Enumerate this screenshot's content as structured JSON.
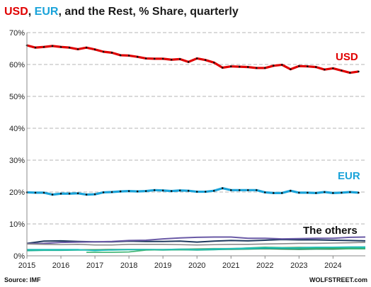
{
  "chart_data": {
    "type": "line",
    "title": {
      "part1": "USD",
      "sep1": ", ",
      "part2": "EUR",
      "part3": ", and the Rest, % Share, quarterly"
    },
    "source": "Source: IMF",
    "brand": "WOLFSTREET.com",
    "x_ticks": [
      "2015",
      "2016",
      "2017",
      "2018",
      "2019",
      "2020",
      "2021",
      "2022",
      "2023",
      "2024"
    ],
    "y_ticks": [
      "0%",
      "10%",
      "20%",
      "30%",
      "40%",
      "50%",
      "60%",
      "70%"
    ],
    "ylim": [
      0,
      70
    ],
    "xlim": [
      2015.0,
      2024.95
    ],
    "grid": true,
    "colors": {
      "usd": "#e00000",
      "eur": "#1aa3d9",
      "marker": "#111111",
      "others": [
        "#1f3a5f",
        "#6a5aa6",
        "#8a8a8a",
        "#b5a642",
        "#2e8b57",
        "#1fb59a",
        "#3cb371",
        "#20c0c0"
      ]
    },
    "series": [
      {
        "key": "usd",
        "label": "USD",
        "x": [
          2015.0,
          2015.25,
          2015.5,
          2015.75,
          2016.0,
          2016.25,
          2016.5,
          2016.75,
          2017.0,
          2017.25,
          2017.5,
          2017.75,
          2018.0,
          2018.25,
          2018.5,
          2018.75,
          2019.0,
          2019.25,
          2019.5,
          2019.75,
          2020.0,
          2020.25,
          2020.5,
          2020.75,
          2021.0,
          2021.25,
          2021.5,
          2021.75,
          2022.0,
          2022.25,
          2022.5,
          2022.75,
          2023.0,
          2023.25,
          2023.5,
          2023.75,
          2024.0,
          2024.25,
          2024.5,
          2024.75
        ],
        "values": [
          66.0,
          65.3,
          65.5,
          65.8,
          65.5,
          65.3,
          64.8,
          65.3,
          64.7,
          64.0,
          63.7,
          62.9,
          62.8,
          62.4,
          61.9,
          61.8,
          61.8,
          61.5,
          61.7,
          60.8,
          61.9,
          61.4,
          60.6,
          59.0,
          59.4,
          59.3,
          59.2,
          58.9,
          58.9,
          59.6,
          59.9,
          58.5,
          59.5,
          59.4,
          59.2,
          58.4,
          58.8,
          58.1,
          57.4,
          57.8
        ]
      },
      {
        "key": "eur",
        "label": "EUR",
        "x": [
          2015.0,
          2015.25,
          2015.5,
          2015.75,
          2016.0,
          2016.25,
          2016.5,
          2016.75,
          2017.0,
          2017.25,
          2017.5,
          2017.75,
          2018.0,
          2018.25,
          2018.5,
          2018.75,
          2019.0,
          2019.25,
          2019.5,
          2019.75,
          2020.0,
          2020.25,
          2020.5,
          2020.75,
          2021.0,
          2021.25,
          2021.5,
          2021.75,
          2022.0,
          2022.25,
          2022.5,
          2022.75,
          2023.0,
          2023.25,
          2023.5,
          2023.75,
          2024.0,
          2024.25,
          2024.5,
          2024.75
        ],
        "values": [
          19.9,
          19.8,
          19.8,
          19.2,
          19.5,
          19.5,
          19.6,
          19.2,
          19.3,
          19.9,
          20.0,
          20.2,
          20.3,
          20.2,
          20.3,
          20.6,
          20.5,
          20.3,
          20.5,
          20.4,
          20.1,
          20.1,
          20.4,
          21.2,
          20.6,
          20.6,
          20.6,
          20.6,
          19.9,
          19.7,
          19.7,
          20.4,
          19.8,
          19.8,
          19.7,
          20.0,
          19.7,
          19.8,
          20.0,
          19.8
        ]
      }
    ],
    "others_label": "The others",
    "others": [
      {
        "x": [
          2015.0,
          2015.5,
          2016.0,
          2016.5,
          2017.0,
          2017.5,
          2018.0,
          2018.5,
          2019.0,
          2019.5,
          2020.0,
          2020.5,
          2021.0,
          2021.5,
          2022.0,
          2022.5,
          2023.0,
          2023.5,
          2024.0,
          2024.5,
          2024.95
        ],
        "values": [
          3.9,
          4.6,
          4.7,
          4.5,
          4.4,
          4.4,
          4.6,
          4.5,
          4.5,
          4.6,
          4.3,
          4.6,
          4.8,
          4.7,
          4.9,
          5.1,
          5.0,
          5.0,
          4.9,
          4.8,
          4.7
        ]
      },
      {
        "x": [
          2015.0,
          2015.5,
          2016.0,
          2016.5,
          2017.0,
          2017.5,
          2018.0,
          2018.5,
          2019.0,
          2019.5,
          2020.0,
          2020.5,
          2021.0,
          2021.5,
          2022.0,
          2022.5,
          2023.0,
          2023.5,
          2024.0,
          2024.5,
          2024.95
        ],
        "values": [
          3.8,
          3.9,
          4.2,
          4.3,
          4.4,
          4.5,
          4.8,
          4.9,
          5.3,
          5.6,
          5.8,
          5.9,
          5.9,
          5.5,
          5.5,
          5.3,
          5.4,
          5.5,
          5.5,
          5.8,
          5.9
        ]
      },
      {
        "x": [
          2015.0,
          2015.5,
          2016.0,
          2016.5,
          2017.0,
          2017.5,
          2018.0,
          2018.5,
          2019.0,
          2019.5,
          2020.0,
          2020.5,
          2021.0,
          2021.5,
          2022.0,
          2022.5,
          2023.0,
          2023.5,
          2024.0,
          2024.5,
          2024.95
        ],
        "values": [
          3.7,
          3.6,
          3.5,
          3.6,
          3.4,
          3.4,
          3.6,
          3.6,
          3.6,
          3.5,
          3.4,
          3.5,
          3.6,
          3.6,
          3.7,
          3.8,
          3.9,
          3.9,
          4.0,
          4.1,
          4.2
        ]
      },
      {
        "x": [
          2015.0,
          2015.5,
          2016.0,
          2016.5,
          2017.0,
          2017.5,
          2018.0,
          2018.5,
          2019.0,
          2019.5,
          2020.0,
          2020.5,
          2021.0,
          2021.5,
          2022.0,
          2022.5,
          2023.0,
          2023.5,
          2024.0,
          2024.5,
          2024.95
        ],
        "values": [
          1.8,
          1.8,
          1.9,
          1.9,
          1.9,
          2.0,
          2.0,
          2.0,
          2.0,
          2.1,
          2.2,
          2.3,
          2.3,
          2.4,
          2.6,
          2.6,
          2.7,
          2.6,
          2.6,
          2.7,
          2.8
        ]
      },
      {
        "x": [
          2015.0,
          2015.5,
          2016.0,
          2016.5,
          2017.0,
          2017.5,
          2018.0,
          2018.5,
          2019.0,
          2019.5,
          2020.0,
          2020.5,
          2021.0,
          2021.5,
          2022.0,
          2022.5,
          2023.0,
          2023.5,
          2024.0,
          2024.5,
          2024.95
        ],
        "values": [
          1.8,
          1.8,
          1.9,
          1.9,
          1.9,
          2.0,
          2.0,
          2.0,
          1.9,
          1.9,
          1.9,
          2.0,
          2.0,
          2.1,
          2.2,
          2.1,
          2.0,
          2.1,
          2.1,
          2.2,
          2.2
        ]
      },
      {
        "x": [
          2015.0,
          2015.5,
          2016.0,
          2016.5,
          2017.0,
          2017.5,
          2018.0,
          2018.5,
          2019.0,
          2019.5,
          2020.0,
          2020.5,
          2021.0,
          2021.5,
          2022.0,
          2022.5,
          2023.0,
          2023.5,
          2024.0,
          2024.5,
          2024.95
        ],
        "values": [
          1.6,
          1.7,
          1.7,
          1.8,
          1.8,
          1.8,
          1.9,
          1.9,
          1.8,
          1.9,
          1.8,
          1.9,
          2.1,
          2.2,
          2.4,
          2.4,
          2.3,
          2.3,
          2.4,
          2.4,
          2.5
        ]
      },
      {
        "x": [
          2016.75,
          2017.0,
          2017.5,
          2018.0,
          2018.5,
          2019.0,
          2019.5,
          2020.0,
          2020.5,
          2021.0,
          2021.5,
          2022.0,
          2022.5,
          2023.0,
          2023.5,
          2024.0,
          2024.5,
          2024.95
        ],
        "values": [
          1.1,
          1.1,
          1.1,
          1.2,
          1.8,
          1.9,
          1.9,
          2.0,
          2.2,
          2.2,
          2.5,
          2.7,
          2.6,
          2.5,
          2.4,
          2.4,
          2.2,
          2.2
        ]
      },
      {
        "x": [
          2015.0,
          2015.5,
          2016.0,
          2016.5,
          2017.0,
          2017.5,
          2018.0,
          2018.5,
          2019.0,
          2019.5,
          2020.0,
          2020.5,
          2021.0,
          2021.5,
          2022.0,
          2022.5,
          2023.0,
          2023.5,
          2024.0,
          2024.5,
          2024.95
        ],
        "values": [
          2.0,
          2.0,
          2.0,
          2.0,
          1.6,
          1.9,
          2.0,
          2.0,
          2.0,
          2.1,
          2.1,
          2.2,
          2.3,
          2.4,
          2.5,
          2.5,
          2.6,
          2.7,
          2.7,
          2.8,
          2.8
        ]
      }
    ]
  }
}
